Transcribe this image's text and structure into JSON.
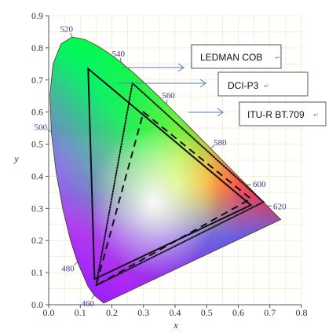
{
  "chart_data": {
    "type": "scatter",
    "title": "",
    "xlabel": "x",
    "ylabel": "y",
    "xlim": [
      0.0,
      0.8
    ],
    "ylim": [
      0.0,
      0.9
    ],
    "x_ticks": [
      "0.0",
      "0.1",
      "0.2",
      "0.3",
      "0.4",
      "0.5",
      "0.6",
      "0.7",
      "0.8"
    ],
    "y_ticks": [
      "0.0",
      "0.1",
      "0.2",
      "0.3",
      "0.4",
      "0.5",
      "0.6",
      "0.7",
      "0.8",
      "0.9"
    ],
    "grid": true,
    "spectral_locus": [
      [
        0.1741,
        0.005
      ],
      [
        0.144,
        0.0297
      ],
      [
        0.1241,
        0.0578
      ],
      [
        0.0913,
        0.1327
      ],
      [
        0.0687,
        0.2007
      ],
      [
        0.0454,
        0.295
      ],
      [
        0.0235,
        0.4127
      ],
      [
        0.0082,
        0.5384
      ],
      [
        0.0039,
        0.6548
      ],
      [
        0.0139,
        0.7502
      ],
      [
        0.0389,
        0.812
      ],
      [
        0.0743,
        0.8338
      ],
      [
        0.1142,
        0.8262
      ],
      [
        0.1547,
        0.8059
      ],
      [
        0.1929,
        0.7816
      ],
      [
        0.2296,
        0.7543
      ],
      [
        0.2658,
        0.7243
      ],
      [
        0.3016,
        0.6923
      ],
      [
        0.3373,
        0.6589
      ],
      [
        0.3731,
        0.6245
      ],
      [
        0.4087,
        0.5896
      ],
      [
        0.4441,
        0.5547
      ],
      [
        0.4788,
        0.5202
      ],
      [
        0.5125,
        0.4866
      ],
      [
        0.5448,
        0.4544
      ],
      [
        0.5752,
        0.4242
      ],
      [
        0.6029,
        0.3965
      ],
      [
        0.627,
        0.3725
      ],
      [
        0.6482,
        0.3514
      ],
      [
        0.6658,
        0.334
      ],
      [
        0.6801,
        0.3197
      ],
      [
        0.6915,
        0.3083
      ],
      [
        0.7006,
        0.2993
      ],
      [
        0.7079,
        0.292
      ],
      [
        0.7347,
        0.2653
      ]
    ],
    "wavelength_labels": [
      {
        "text": "460",
        "x": 0.144,
        "y": 0.0297
      },
      {
        "text": "480",
        "x": 0.0913,
        "y": 0.1327
      },
      {
        "text": "500",
        "x": 0.0082,
        "y": 0.5384
      },
      {
        "text": "520",
        "x": 0.0743,
        "y": 0.8338
      },
      {
        "text": "540",
        "x": 0.2296,
        "y": 0.7543
      },
      {
        "text": "560",
        "x": 0.3731,
        "y": 0.6245
      },
      {
        "text": "580",
        "x": 0.5125,
        "y": 0.4866
      },
      {
        "text": "600",
        "x": 0.627,
        "y": 0.3725
      },
      {
        "text": "620",
        "x": 0.6915,
        "y": 0.3083
      }
    ],
    "series": [
      {
        "name": "LEDMAN COB",
        "style": "solid",
        "color": "#111111",
        "vertices": [
          [
            0.125,
            0.735
          ],
          [
            0.64,
            0.31
          ],
          [
            0.145,
            0.08
          ]
        ]
      },
      {
        "name": "DCI-P3",
        "style": "dotted",
        "color": "#111111",
        "vertices": [
          [
            0.265,
            0.69
          ],
          [
            0.68,
            0.32
          ],
          [
            0.15,
            0.06
          ]
        ]
      },
      {
        "name": "ITU-R BT.709",
        "style": "dashed",
        "color": "#111111",
        "vertices": [
          [
            0.3,
            0.6
          ],
          [
            0.64,
            0.33
          ],
          [
            0.15,
            0.06
          ]
        ]
      }
    ]
  }
}
